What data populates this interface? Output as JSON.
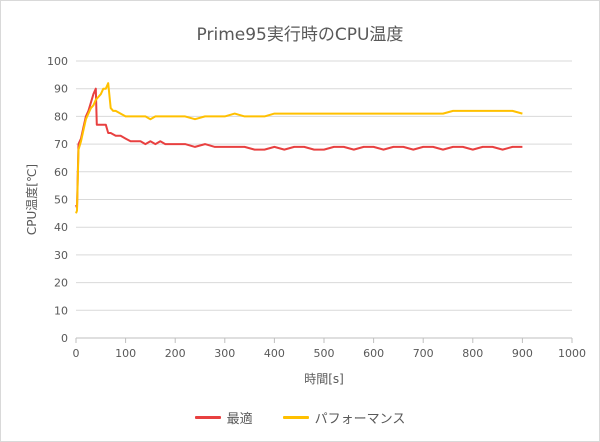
{
  "chart_data": {
    "type": "line",
    "title": "Prime95実行時のCPU温度",
    "xlabel": "時間[s]",
    "ylabel": "CPU温度[℃]",
    "xlim": [
      0,
      1000
    ],
    "ylim": [
      0,
      100
    ],
    "x_ticks": [
      0,
      100,
      200,
      300,
      400,
      500,
      600,
      700,
      800,
      900,
      1000
    ],
    "y_ticks": [
      0,
      10,
      20,
      30,
      40,
      50,
      60,
      70,
      80,
      90,
      100
    ],
    "grid": "horizontal",
    "legend_position": "bottom",
    "series": [
      {
        "name": "最適",
        "color": "#e84040",
        "points": [
          [
            0,
            48
          ],
          [
            2,
            47
          ],
          [
            5,
            70
          ],
          [
            10,
            72
          ],
          [
            15,
            76
          ],
          [
            20,
            80
          ],
          [
            25,
            82
          ],
          [
            30,
            85
          ],
          [
            35,
            88
          ],
          [
            40,
            90
          ],
          [
            42,
            77
          ],
          [
            50,
            77
          ],
          [
            55,
            77
          ],
          [
            60,
            77
          ],
          [
            65,
            74
          ],
          [
            70,
            74
          ],
          [
            80,
            73
          ],
          [
            90,
            73
          ],
          [
            100,
            72
          ],
          [
            110,
            71
          ],
          [
            120,
            71
          ],
          [
            130,
            71
          ],
          [
            140,
            70
          ],
          [
            150,
            71
          ],
          [
            160,
            70
          ],
          [
            170,
            71
          ],
          [
            180,
            70
          ],
          [
            200,
            70
          ],
          [
            220,
            70
          ],
          [
            240,
            69
          ],
          [
            260,
            70
          ],
          [
            280,
            69
          ],
          [
            300,
            69
          ],
          [
            320,
            69
          ],
          [
            340,
            69
          ],
          [
            360,
            68
          ],
          [
            380,
            68
          ],
          [
            400,
            69
          ],
          [
            420,
            68
          ],
          [
            440,
            69
          ],
          [
            460,
            69
          ],
          [
            480,
            68
          ],
          [
            500,
            68
          ],
          [
            520,
            69
          ],
          [
            540,
            69
          ],
          [
            560,
            68
          ],
          [
            580,
            69
          ],
          [
            600,
            69
          ],
          [
            620,
            68
          ],
          [
            640,
            69
          ],
          [
            660,
            69
          ],
          [
            680,
            68
          ],
          [
            700,
            69
          ],
          [
            720,
            69
          ],
          [
            740,
            68
          ],
          [
            760,
            69
          ],
          [
            780,
            69
          ],
          [
            800,
            68
          ],
          [
            820,
            69
          ],
          [
            840,
            69
          ],
          [
            860,
            68
          ],
          [
            880,
            69
          ],
          [
            900,
            69
          ]
        ]
      },
      {
        "name": "パフォーマンス",
        "color": "#ffc000",
        "points": [
          [
            0,
            45
          ],
          [
            2,
            46
          ],
          [
            5,
            68
          ],
          [
            10,
            71
          ],
          [
            15,
            75
          ],
          [
            20,
            79
          ],
          [
            25,
            81
          ],
          [
            30,
            83
          ],
          [
            35,
            84
          ],
          [
            40,
            86
          ],
          [
            45,
            87
          ],
          [
            50,
            88
          ],
          [
            55,
            90
          ],
          [
            60,
            90
          ],
          [
            65,
            92
          ],
          [
            70,
            83
          ],
          [
            75,
            82
          ],
          [
            80,
            82
          ],
          [
            90,
            81
          ],
          [
            100,
            80
          ],
          [
            110,
            80
          ],
          [
            120,
            80
          ],
          [
            130,
            80
          ],
          [
            140,
            80
          ],
          [
            150,
            79
          ],
          [
            160,
            80
          ],
          [
            170,
            80
          ],
          [
            180,
            80
          ],
          [
            200,
            80
          ],
          [
            220,
            80
          ],
          [
            240,
            79
          ],
          [
            260,
            80
          ],
          [
            280,
            80
          ],
          [
            300,
            80
          ],
          [
            320,
            81
          ],
          [
            340,
            80
          ],
          [
            360,
            80
          ],
          [
            380,
            80
          ],
          [
            400,
            81
          ],
          [
            420,
            81
          ],
          [
            440,
            81
          ],
          [
            460,
            81
          ],
          [
            480,
            81
          ],
          [
            500,
            81
          ],
          [
            520,
            81
          ],
          [
            540,
            81
          ],
          [
            560,
            81
          ],
          [
            580,
            81
          ],
          [
            600,
            81
          ],
          [
            620,
            81
          ],
          [
            640,
            81
          ],
          [
            660,
            81
          ],
          [
            680,
            81
          ],
          [
            700,
            81
          ],
          [
            720,
            81
          ],
          [
            740,
            81
          ],
          [
            760,
            82
          ],
          [
            780,
            82
          ],
          [
            800,
            82
          ],
          [
            820,
            82
          ],
          [
            840,
            82
          ],
          [
            860,
            82
          ],
          [
            880,
            82
          ],
          [
            900,
            81
          ]
        ]
      }
    ]
  }
}
